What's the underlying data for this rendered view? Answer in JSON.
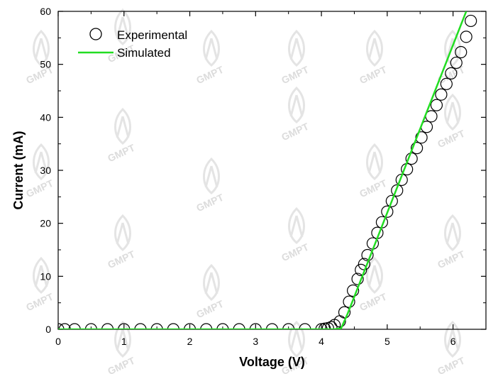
{
  "chart_data": {
    "type": "scatter",
    "xlabel": "Voltage (V)",
    "ylabel": "Current (mA)",
    "xlim": [
      0,
      6.5
    ],
    "ylim": [
      0,
      60
    ],
    "xticks": [
      0,
      1,
      2,
      3,
      4,
      5,
      6
    ],
    "yticks": [
      0,
      10,
      20,
      30,
      40,
      50,
      60
    ],
    "grid": false,
    "legend_position": "top-left",
    "watermark": "GMPT",
    "series": [
      {
        "name": "Experimental",
        "marker": "open-circle",
        "color": "#000000",
        "x": [
          0.0,
          0.1,
          0.25,
          0.5,
          0.75,
          1.0,
          1.25,
          1.5,
          1.75,
          2.0,
          2.25,
          2.5,
          2.75,
          3.0,
          3.25,
          3.5,
          3.75,
          4.0,
          4.05,
          4.1,
          4.15,
          4.2,
          4.28,
          4.35,
          4.42,
          4.48,
          4.55,
          4.6,
          4.65,
          4.7,
          4.78,
          4.85,
          4.92,
          5.0,
          5.07,
          5.15,
          5.22,
          5.3,
          5.37,
          5.45,
          5.52,
          5.6,
          5.67,
          5.75,
          5.82,
          5.9,
          5.97,
          6.05,
          6.12,
          6.2,
          6.27
        ],
        "y": [
          0,
          0,
          0,
          0,
          0,
          0,
          0,
          0,
          0,
          0,
          0,
          0,
          0,
          0,
          0,
          0,
          0,
          0,
          0.1,
          0.2,
          0.4,
          0.8,
          1.5,
          3.2,
          5.2,
          7.3,
          9.5,
          11.2,
          12.3,
          14,
          16.2,
          18.2,
          20.2,
          22.2,
          24.2,
          26.2,
          28.2,
          30.2,
          32.2,
          34.2,
          36.2,
          38.2,
          40.2,
          42.3,
          44.3,
          46.3,
          48.3,
          50.3,
          52.3,
          55.2,
          58.2
        ]
      },
      {
        "name": "Simulated",
        "marker": "line",
        "color": "#22dd22",
        "x": [
          0.0,
          4.2,
          4.3,
          4.4,
          6.2
        ],
        "y": [
          0,
          0,
          0.2,
          3.0,
          60
        ]
      }
    ]
  }
}
